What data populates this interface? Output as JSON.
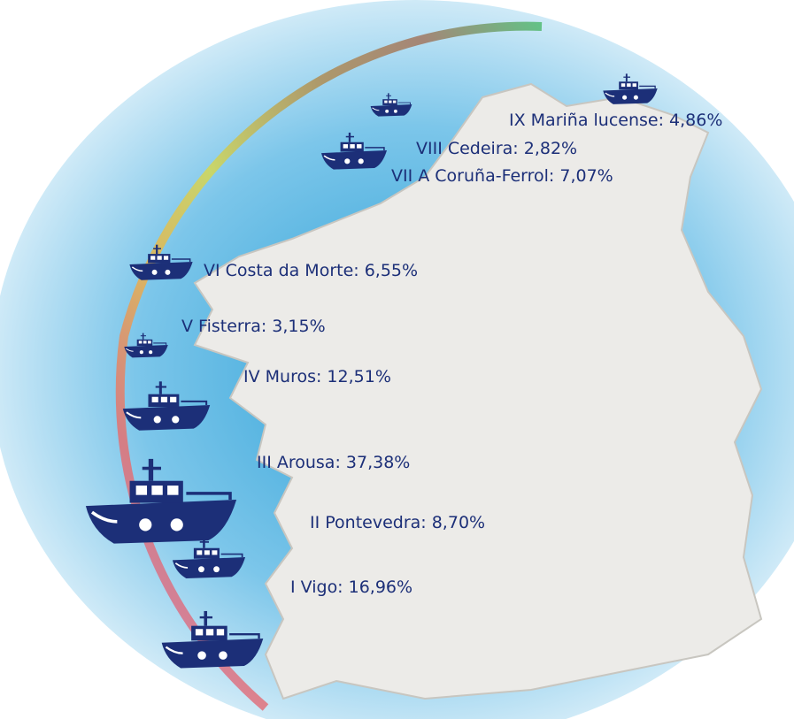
{
  "zones": [
    {
      "label": "IX Mariña lucense: 4,86%",
      "value": 4.86
    },
    {
      "label": "VIII Cedeira: 2,82%",
      "value": 2.82
    },
    {
      "label": "VII A Coruña-Ferrol: 7,07%",
      "value": 7.07
    },
    {
      "label": "VI Costa da Morte: 6,55%",
      "value": 6.55
    },
    {
      "label": "V Fisterra: 3,15%",
      "value": 3.15
    },
    {
      "label": "IV Muros: 12,51%",
      "value": 12.51
    },
    {
      "label": "III Arousa: 37,38%",
      "value": 37.38
    },
    {
      "label": "II Pontevedra: 8,70%",
      "value": 8.7
    },
    {
      "label": "I Vigo: 16,96%",
      "value": 16.96
    }
  ]
}
